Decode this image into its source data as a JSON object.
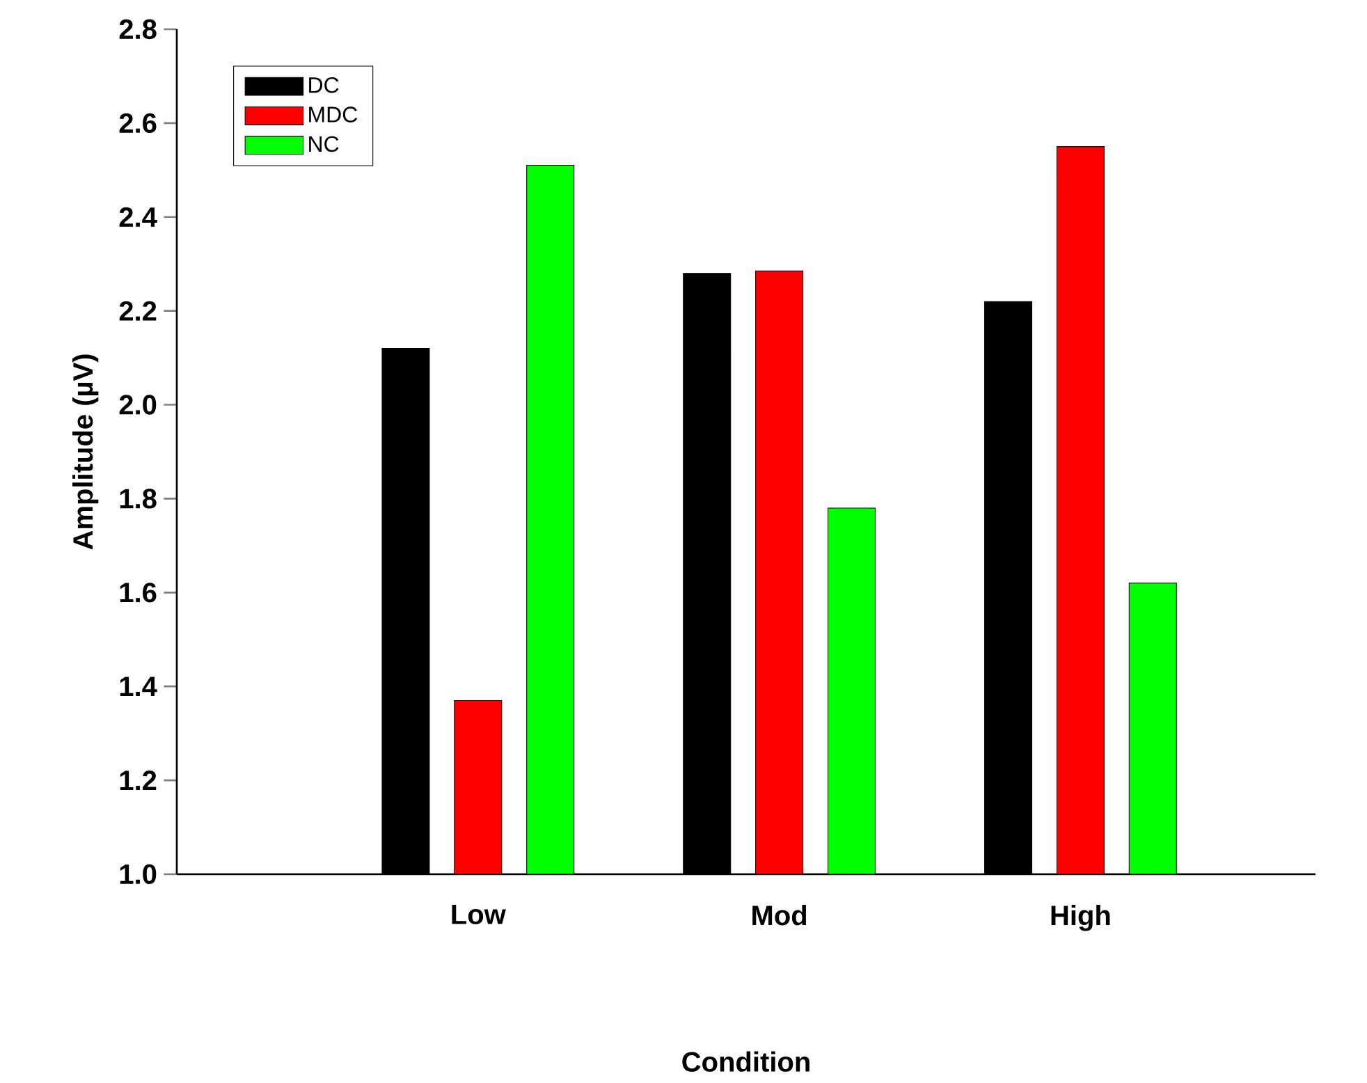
{
  "chart_data": {
    "type": "bar",
    "xlabel": "Condition",
    "ylabel": "Amplitude (µV)",
    "categories": [
      "Low",
      "Mod",
      "High"
    ],
    "series": [
      {
        "name": "DC",
        "color": "#000000",
        "values": [
          2.12,
          2.28,
          2.22
        ]
      },
      {
        "name": "MDC",
        "color": "#ff0000",
        "values": [
          1.37,
          2.285,
          2.55
        ]
      },
      {
        "name": "NC",
        "color": "#00ff00",
        "values": [
          2.51,
          1.78,
          1.62
        ]
      }
    ],
    "ylim": [
      1.0,
      2.8
    ],
    "yticks": [
      {
        "value": 1.0,
        "label": "1.0"
      },
      {
        "value": 1.2,
        "label": "1.2"
      },
      {
        "value": 1.4,
        "label": "1.4"
      },
      {
        "value": 1.6,
        "label": "1.6"
      },
      {
        "value": 1.8,
        "label": "1.8"
      },
      {
        "value": 2.0,
        "label": "2.0"
      },
      {
        "value": 2.2,
        "label": "2.2"
      },
      {
        "value": 2.4,
        "label": "2.4"
      },
      {
        "value": 2.6,
        "label": "2.6"
      },
      {
        "value": 2.8,
        "label": "2.8"
      }
    ],
    "grid": false,
    "legend": "top left"
  }
}
